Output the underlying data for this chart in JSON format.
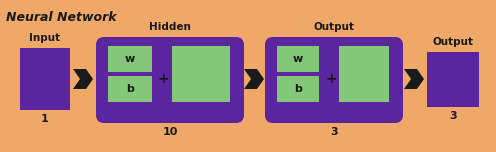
{
  "title": "Neural Network",
  "bg_color": "#F0A868",
  "purple": "#5B259F",
  "green": "#82C878",
  "black": "#1A1A1A",
  "input_label": "Input",
  "hidden_label": "Hidden",
  "output_label": "Output",
  "output_label2": "Output",
  "num1": "1",
  "num2": "10",
  "num3": "3",
  "num4": "3",
  "w_label": "w",
  "b_label": "b",
  "plus_label": "+",
  "title_fontsize": 9,
  "label_fontsize": 7.5,
  "num_fontsize": 8,
  "wb_fontsize": 8,
  "plus_fontsize": 10
}
